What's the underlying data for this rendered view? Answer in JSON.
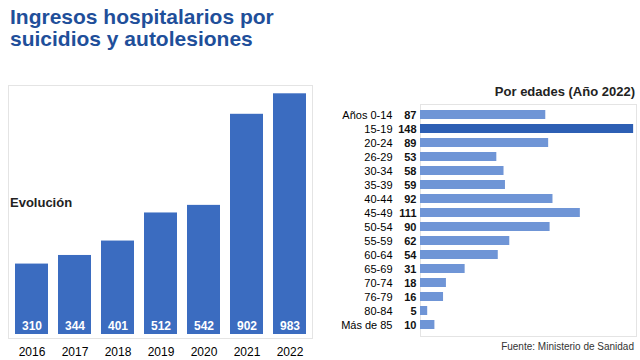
{
  "chart_data": [
    {
      "type": "bar",
      "title": "Ingresos hospitalarios por suicidios y autolesiones",
      "subtitle": "Evolución",
      "categories": [
        "2016",
        "2017",
        "2018",
        "2019",
        "2020",
        "2021",
        "2022"
      ],
      "values": [
        310,
        344,
        401,
        512,
        542,
        902,
        983
      ],
      "color": "#3b6cc0",
      "ylim": [
        0,
        1000
      ],
      "yticks": [],
      "data_labels": true,
      "tick_labels": "x",
      "grid": false
    },
    {
      "type": "bar",
      "orientation": "horizontal",
      "title": "Por edades (Año 2022)",
      "categories": [
        "Años 0-14",
        "15-19",
        "20-24",
        "26-29",
        "30-34",
        "35-39",
        "40-44",
        "45-49",
        "50-54",
        "55-59",
        "60-64",
        "65-69",
        "70-74",
        "76-79",
        "80-84",
        "Más de 85"
      ],
      "values": [
        87,
        148,
        89,
        53,
        58,
        59,
        92,
        111,
        90,
        62,
        54,
        31,
        18,
        16,
        5,
        10
      ],
      "colors": [
        "#6f95d6",
        "#2d5fb4",
        "#6f95d6",
        "#6f95d6",
        "#6f95d6",
        "#6f95d6",
        "#6f95d6",
        "#6f95d6",
        "#6f95d6",
        "#6f95d6",
        "#6f95d6",
        "#6f95d6",
        "#6f95d6",
        "#6f95d6",
        "#6f95d6",
        "#6f95d6"
      ],
      "xlim": [
        0,
        150
      ],
      "xticks": [],
      "data_labels": true,
      "tick_labels": "y",
      "grid": false,
      "annotations": [
        "Fuente: Ministerio de Sanidad"
      ]
    }
  ]
}
